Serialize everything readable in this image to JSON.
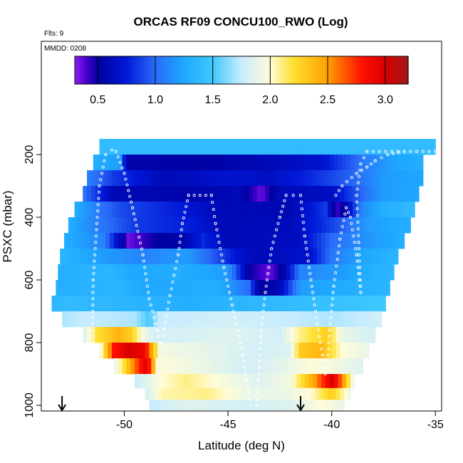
{
  "title": "ORCAS RF09 CONCU100_RWO (Log)",
  "flts_label": "Flts: 9",
  "mmdd_label": "MMDD: 0208",
  "colors": {
    "background": "#ffffff",
    "text": "#000000",
    "track": "#ffffff",
    "arrow": "#000000"
  },
  "colorbar": {
    "range": [
      0.3,
      3.2
    ],
    "ticks": [
      0.5,
      1.0,
      1.5,
      2.0,
      2.5,
      3.0
    ],
    "tick_labels": [
      "0.5",
      "1.0",
      "1.5",
      "2.0",
      "2.5",
      "3.0"
    ],
    "stops": [
      {
        "v": 0.3,
        "c": "#8b22f0"
      },
      {
        "v": 0.4,
        "c": "#4a00d0"
      },
      {
        "v": 0.5,
        "c": "#0000a0"
      },
      {
        "v": 0.75,
        "c": "#0018d8"
      },
      {
        "v": 1.0,
        "c": "#2a6cf8"
      },
      {
        "v": 1.25,
        "c": "#1ea8ff"
      },
      {
        "v": 1.5,
        "c": "#40c8ff"
      },
      {
        "v": 1.75,
        "c": "#c8ecff"
      },
      {
        "v": 2.0,
        "c": "#fffcd8"
      },
      {
        "v": 2.2,
        "c": "#ffe030"
      },
      {
        "v": 2.5,
        "c": "#ffa000"
      },
      {
        "v": 2.8,
        "c": "#ff1000"
      },
      {
        "v": 3.0,
        "c": "#d80000"
      },
      {
        "v": 3.2,
        "c": "#a01818"
      }
    ]
  },
  "chart_data": {
    "type": "heatmap",
    "title": "ORCAS RF09 CONCU100_RWO (Log)",
    "xlabel": "Latitude (deg N)",
    "ylabel": "PSXC (mbar)",
    "xlim": [
      -54,
      -34.7
    ],
    "ylim": [
      1010,
      90
    ],
    "xticks": [
      -50,
      -45,
      -40,
      -35
    ],
    "xtick_labels": [
      "-50",
      "-45",
      "-40",
      "-35"
    ],
    "yticks": [
      200,
      400,
      600,
      800,
      1000
    ],
    "ytick_labels": [
      "200",
      "400",
      "600",
      "800",
      "1000"
    ],
    "color_scale": "log10 of concentration",
    "rows": [
      {
        "p": 175,
        "x0": -51.2,
        "x1": -35.0,
        "segs": [
          [
            -51.2,
            1.4
          ],
          [
            -35.0,
            1.4
          ]
        ]
      },
      {
        "p": 225,
        "x0": -51.5,
        "x1": -35.6,
        "segs": [
          [
            -51.5,
            1.3
          ],
          [
            -50.2,
            1.2
          ],
          [
            -49.9,
            0.55
          ],
          [
            -46,
            0.52
          ],
          [
            -43,
            0.6
          ],
          [
            -40.5,
            0.7
          ],
          [
            -38.2,
            1.1
          ],
          [
            -36.8,
            1.25
          ],
          [
            -35.6,
            1.3
          ]
        ]
      },
      {
        "p": 275,
        "x0": -51.8,
        "x1": -35.6,
        "segs": [
          [
            -51.8,
            1.1
          ],
          [
            -50.5,
            0.85
          ],
          [
            -48,
            0.6
          ],
          [
            -45,
            0.7
          ],
          [
            -43,
            0.65
          ],
          [
            -41,
            0.8
          ],
          [
            -38.8,
            1.0
          ],
          [
            -37.5,
            1.2
          ],
          [
            -35.6,
            1.25
          ]
        ]
      },
      {
        "p": 325,
        "x0": -52.0,
        "x1": -35.8,
        "segs": [
          [
            -52.0,
            1.05
          ],
          [
            -50.6,
            0.6
          ],
          [
            -47,
            0.55
          ],
          [
            -44.5,
            0.6
          ],
          [
            -43.4,
            0.35
          ],
          [
            -42.6,
            0.6
          ],
          [
            -40,
            0.65
          ],
          [
            -38.5,
            1.0
          ],
          [
            -37.5,
            1.2
          ],
          [
            -35.8,
            1.25
          ]
        ]
      },
      {
        "p": 375,
        "x0": -52.4,
        "x1": -36.0,
        "segs": [
          [
            -52.4,
            1.3
          ],
          [
            -51.2,
            1.05
          ],
          [
            -50.2,
            0.9
          ],
          [
            -47.2,
            0.75
          ],
          [
            -45.5,
            0.6
          ],
          [
            -42,
            0.58
          ],
          [
            -40.3,
            0.85
          ],
          [
            -39.8,
            0.4
          ],
          [
            -39.3,
            0.55
          ],
          [
            -38.6,
            1.1
          ],
          [
            -37.5,
            1.3
          ],
          [
            -36.0,
            1.4
          ]
        ]
      },
      {
        "p": 425,
        "x0": -52.7,
        "x1": -36.2,
        "segs": [
          [
            -52.7,
            1.3
          ],
          [
            -51.5,
            1.1
          ],
          [
            -49.5,
            0.85
          ],
          [
            -46.5,
            0.75
          ],
          [
            -45.3,
            0.6
          ],
          [
            -42,
            0.62
          ],
          [
            -40.5,
            0.8
          ],
          [
            -39.5,
            0.95
          ],
          [
            -38.3,
            1.2
          ],
          [
            -36.2,
            1.3
          ]
        ]
      },
      {
        "p": 475,
        "x0": -52.9,
        "x1": -36.5,
        "segs": [
          [
            -52.9,
            1.3
          ],
          [
            -51.0,
            1.1
          ],
          [
            -49.8,
            0.35
          ],
          [
            -48.5,
            0.5
          ],
          [
            -47.2,
            0.55
          ],
          [
            -46.2,
            0.8
          ],
          [
            -45.0,
            0.6
          ],
          [
            -41.5,
            0.65
          ],
          [
            -40.0,
            1.0
          ],
          [
            -38.5,
            1.15
          ],
          [
            -36.5,
            1.3
          ]
        ]
      },
      {
        "p": 525,
        "x0": -53.1,
        "x1": -36.8,
        "segs": [
          [
            -53.1,
            1.35
          ],
          [
            -51.0,
            1.2
          ],
          [
            -49.0,
            1.1
          ],
          [
            -47.0,
            1.2
          ],
          [
            -45.2,
            0.85
          ],
          [
            -44.5,
            0.7
          ],
          [
            -43.5,
            0.6
          ],
          [
            -41,
            0.7
          ],
          [
            -40,
            1.05
          ],
          [
            -38.5,
            1.25
          ],
          [
            -36.8,
            1.35
          ]
        ]
      },
      {
        "p": 575,
        "x0": -53.2,
        "x1": -37.0,
        "segs": [
          [
            -53.2,
            1.3
          ],
          [
            -50.8,
            1.35
          ],
          [
            -49.5,
            1.25
          ],
          [
            -47.5,
            1.3
          ],
          [
            -45.0,
            1.2
          ],
          [
            -44.0,
            0.5
          ],
          [
            -43.0,
            0.35
          ],
          [
            -42.3,
            0.55
          ],
          [
            -41.5,
            1.1
          ],
          [
            -39.5,
            1.2
          ],
          [
            -38.2,
            1.3
          ],
          [
            -37.0,
            1.35
          ]
        ]
      },
      {
        "p": 625,
        "x0": -53.3,
        "x1": -37.2,
        "segs": [
          [
            -53.3,
            1.3
          ],
          [
            -50.5,
            1.35
          ],
          [
            -49.0,
            1.25
          ],
          [
            -45.5,
            1.3
          ],
          [
            -44.0,
            1.0
          ],
          [
            -43.5,
            0.5
          ],
          [
            -42.5,
            0.6
          ],
          [
            -41.5,
            1.2
          ],
          [
            -39.0,
            1.3
          ],
          [
            -37.2,
            1.35
          ]
        ]
      },
      {
        "p": 675,
        "x0": -53.5,
        "x1": -37.4,
        "segs": [
          [
            -53.5,
            1.35
          ],
          [
            -52.8,
            1.4
          ],
          [
            -50.0,
            1.35
          ],
          [
            -47.0,
            1.3
          ],
          [
            -44.5,
            1.35
          ],
          [
            -42.0,
            1.4
          ],
          [
            -39.5,
            1.45
          ],
          [
            -37.4,
            1.5
          ]
        ]
      },
      {
        "p": 725,
        "x0": -53.0,
        "x1": -37.6,
        "segs": [
          [
            -53.0,
            1.7
          ],
          [
            -52.0,
            1.75
          ],
          [
            -49.5,
            1.7
          ],
          [
            -48.8,
            1.5
          ],
          [
            -48.3,
            1.75
          ],
          [
            -45.0,
            1.8
          ],
          [
            -42.0,
            1.75
          ],
          [
            -40.0,
            1.7
          ],
          [
            -38.5,
            1.75
          ],
          [
            -37.6,
            1.8
          ]
        ]
      },
      {
        "p": 775,
        "x0": -52.0,
        "x1": -37.9,
        "segs": [
          [
            -52.0,
            1.8
          ],
          [
            -51.3,
            2.2
          ],
          [
            -50.3,
            2.4
          ],
          [
            -49.7,
            2.3
          ],
          [
            -49.0,
            1.9
          ],
          [
            -48.5,
            1.8
          ],
          [
            -45.0,
            1.85
          ],
          [
            -42.5,
            1.8
          ],
          [
            -41.5,
            2.1
          ],
          [
            -40.2,
            2.3
          ],
          [
            -39.5,
            1.9
          ],
          [
            -37.9,
            1.8
          ]
        ]
      },
      {
        "p": 825,
        "x0": -51.2,
        "x1": -38.2,
        "segs": [
          [
            -51.2,
            1.9
          ],
          [
            -50.5,
            2.8
          ],
          [
            -49.8,
            3.0
          ],
          [
            -49.0,
            2.9
          ],
          [
            -48.3,
            1.95
          ],
          [
            -45.0,
            1.85
          ],
          [
            -43.5,
            1.8
          ],
          [
            -42.0,
            1.85
          ],
          [
            -41.5,
            2.3
          ],
          [
            -40.5,
            2.4
          ],
          [
            -39.5,
            2.0
          ],
          [
            -38.2,
            1.9
          ]
        ]
      },
      {
        "p": 875,
        "x0": -50.5,
        "x1": -38.5,
        "segs": [
          [
            -50.5,
            1.85
          ],
          [
            -50.0,
            2.2
          ],
          [
            -49.5,
            2.6
          ],
          [
            -48.9,
            3.0
          ],
          [
            -48.4,
            2.0
          ],
          [
            -46.0,
            1.9
          ],
          [
            -44.0,
            1.8
          ],
          [
            -42.0,
            1.9
          ],
          [
            -41.0,
            2.0
          ],
          [
            -40.0,
            1.95
          ],
          [
            -38.5,
            1.85
          ]
        ]
      },
      {
        "p": 925,
        "x0": -49.5,
        "x1": -38.9,
        "segs": [
          [
            -49.5,
            1.75
          ],
          [
            -48.2,
            2.0
          ],
          [
            -47.0,
            2.1
          ],
          [
            -45.0,
            1.95
          ],
          [
            -43.5,
            1.85
          ],
          [
            -42.0,
            1.95
          ],
          [
            -40.8,
            2.5
          ],
          [
            -40.0,
            3.0
          ],
          [
            -39.5,
            2.6
          ],
          [
            -38.9,
            1.8
          ]
        ]
      },
      {
        "p": 965,
        "x0": -49.0,
        "x1": -39.1,
        "segs": [
          [
            -49.0,
            1.8
          ],
          [
            -48.2,
            2.05
          ],
          [
            -46.0,
            2.1
          ],
          [
            -44.0,
            1.9
          ],
          [
            -42.5,
            1.9
          ],
          [
            -41.0,
            2.0
          ],
          [
            -40.0,
            2.3
          ],
          [
            -39.1,
            1.9
          ]
        ]
      },
      {
        "p": 1000,
        "x0": -48.8,
        "x1": -39.4,
        "segs": [
          [
            -48.8,
            1.75
          ],
          [
            -47.0,
            1.85
          ],
          [
            -44.0,
            1.8
          ],
          [
            -42.0,
            1.85
          ],
          [
            -40.5,
            2.0
          ],
          [
            -39.4,
            1.9
          ]
        ]
      }
    ],
    "tracks": [
      [
        [
          -51.6,
          1000
        ],
        [
          -51.5,
          600
        ],
        [
          -51.2,
          300
        ],
        [
          -50.9,
          200
        ],
        [
          -50.6,
          185
        ]
      ],
      [
        [
          -50.4,
          190
        ],
        [
          -50.0,
          260
        ],
        [
          -49.6,
          370
        ],
        [
          -49.1,
          520
        ],
        [
          -48.8,
          660
        ],
        [
          -48.4,
          760
        ],
        [
          -48.3,
          800
        ]
      ],
      [
        [
          -48.2,
          800
        ],
        [
          -47.8,
          650
        ],
        [
          -47.4,
          520
        ],
        [
          -47.2,
          420
        ],
        [
          -46.9,
          330
        ],
        [
          -45.8,
          330
        ],
        [
          -45.6,
          420
        ],
        [
          -45.2,
          560
        ],
        [
          -44.8,
          680
        ],
        [
          -44.4,
          800
        ],
        [
          -44.1,
          920
        ],
        [
          -43.9,
          1000
        ]
      ],
      [
        [
          -43.6,
          1000
        ],
        [
          -43.5,
          880
        ],
        [
          -43.4,
          760
        ],
        [
          -43.2,
          640
        ],
        [
          -42.9,
          500
        ],
        [
          -42.5,
          400
        ],
        [
          -42.2,
          330
        ],
        [
          -41.5,
          330
        ],
        [
          -41.3,
          460
        ],
        [
          -41.0,
          600
        ],
        [
          -40.6,
          780
        ],
        [
          -40.3,
          900
        ]
      ],
      [
        [
          -40.2,
          880
        ],
        [
          -40.1,
          760
        ],
        [
          -39.9,
          620
        ],
        [
          -39.6,
          470
        ],
        [
          -39.3,
          370
        ],
        [
          -39.1,
          400
        ],
        [
          -38.8,
          520
        ],
        [
          -38.6,
          640
        ]
      ],
      [
        [
          -38.6,
          640
        ],
        [
          -38.7,
          480
        ],
        [
          -38.8,
          330
        ],
        [
          -38.6,
          230
        ],
        [
          -38.3,
          190
        ],
        [
          -35.0,
          190
        ]
      ],
      [
        [
          -39.8,
          330
        ],
        [
          -39.5,
          300
        ],
        [
          -38.8,
          260
        ],
        [
          -38.3,
          240
        ],
        [
          -37.9,
          220
        ],
        [
          -37.3,
          200
        ],
        [
          -36.5,
          190
        ]
      ]
    ],
    "markers": [
      {
        "x": -53.0,
        "p": 1000,
        "symbol": "down-arrow"
      },
      {
        "x": -41.5,
        "p": 1000,
        "symbol": "down-arrow"
      }
    ]
  }
}
